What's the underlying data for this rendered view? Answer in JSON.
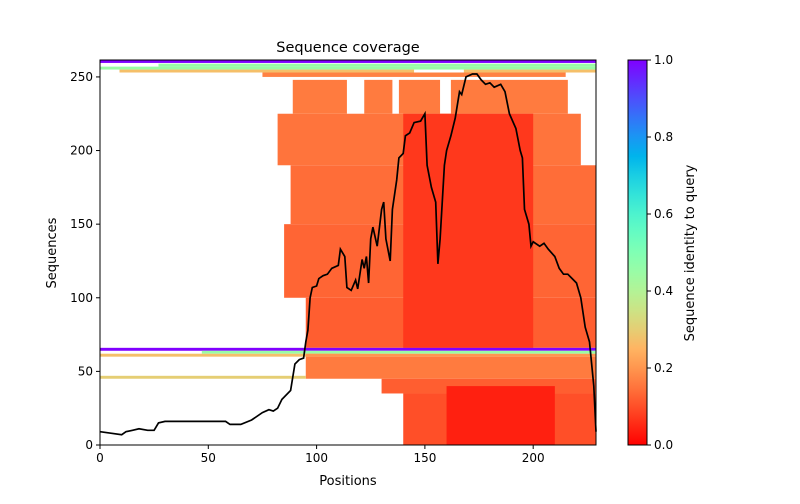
{
  "chart_data": {
    "type": "heatmap",
    "title": "Sequence coverage",
    "xlabel": "Positions",
    "ylabel": "Sequences",
    "xlim": [
      0,
      229
    ],
    "ylim": [
      0,
      261.5
    ],
    "xticks": [
      0,
      50,
      100,
      150,
      200
    ],
    "yticks": [
      0,
      50,
      100,
      150,
      200,
      250
    ],
    "colorbar": {
      "label": "Sequence identity to query",
      "range": [
        0,
        1
      ],
      "ticks": [
        "0.0",
        "0.2",
        "0.4",
        "0.6",
        "0.8",
        "1.0"
      ],
      "colormap": "rainbow_r"
    },
    "coverage_blocks": [
      {
        "rows": [
          259.5,
          261.5
        ],
        "x": [
          0,
          229
        ],
        "identity": 1.0
      },
      {
        "rows": [
          257,
          259
        ],
        "x": [
          27,
          229
        ],
        "identity": 0.45
      },
      {
        "rows": [
          255,
          257
        ],
        "x": [
          0,
          229
        ],
        "identity": 0.45
      },
      {
        "rows": [
          253,
          255
        ],
        "x": [
          9,
          145
        ],
        "identity": 0.27
      },
      {
        "rows": [
          253,
          255
        ],
        "x": [
          168,
          229
        ],
        "identity": 0.27
      },
      {
        "rows": [
          250,
          253
        ],
        "x": [
          75,
          215
        ],
        "identity": 0.17
      },
      {
        "rows": [
          225,
          248
        ],
        "x": [
          89,
          114
        ],
        "identity": 0.16
      },
      {
        "rows": [
          225,
          248
        ],
        "x": [
          122,
          135
        ],
        "identity": 0.16
      },
      {
        "rows": [
          225,
          248
        ],
        "x": [
          138,
          157
        ],
        "identity": 0.16
      },
      {
        "rows": [
          225,
          248
        ],
        "x": [
          162,
          216
        ],
        "identity": 0.16
      },
      {
        "rows": [
          190,
          225
        ],
        "x": [
          82,
          222
        ],
        "identity": 0.15
      },
      {
        "rows": [
          150,
          190
        ],
        "x": [
          88,
          229
        ],
        "identity": 0.14
      },
      {
        "rows": [
          100,
          150
        ],
        "x": [
          85,
          229
        ],
        "identity": 0.13
      },
      {
        "rows": [
          66,
          100
        ],
        "x": [
          95,
          229
        ],
        "identity": 0.12
      },
      {
        "rows": [
          66,
          225
        ],
        "x": [
          140,
          200
        ],
        "identity": 0.07
      },
      {
        "rows": [
          64,
          66
        ],
        "x": [
          0,
          229
        ],
        "identity": 1.0
      },
      {
        "rows": [
          62,
          64
        ],
        "x": [
          47,
          229
        ],
        "identity": 0.45
      },
      {
        "rows": [
          60,
          62
        ],
        "x": [
          0,
          120
        ],
        "identity": 0.27
      },
      {
        "rows": [
          60,
          62
        ],
        "x": [
          95,
          229
        ],
        "identity": 0.2
      },
      {
        "rows": [
          45,
          60
        ],
        "x": [
          95,
          229
        ],
        "identity": 0.16
      },
      {
        "rows": [
          45,
          47
        ],
        "x": [
          0,
          95
        ],
        "identity": 0.3
      },
      {
        "rows": [
          35,
          45
        ],
        "x": [
          130,
          229
        ],
        "identity": 0.12
      },
      {
        "rows": [
          0,
          35
        ],
        "x": [
          140,
          229
        ],
        "identity": 0.1
      },
      {
        "rows": [
          0,
          40
        ],
        "x": [
          160,
          210
        ],
        "identity": 0.04
      }
    ],
    "coverage_line": {
      "x": [
        0,
        5,
        10,
        12,
        15,
        18,
        22,
        25,
        27,
        30,
        40,
        50,
        58,
        60,
        65,
        70,
        75,
        78,
        80,
        82,
        84,
        88,
        90,
        92,
        94,
        95,
        96,
        97,
        98,
        100,
        101,
        103,
        105,
        107,
        110,
        111,
        113,
        114,
        116,
        118,
        119,
        121,
        122,
        123,
        124,
        125,
        126,
        128,
        130,
        131,
        132,
        134,
        135,
        137,
        138,
        140,
        141,
        143,
        145,
        148,
        150,
        151,
        153,
        155,
        156,
        157,
        159,
        160,
        162,
        164,
        166,
        167,
        169,
        172,
        174,
        176,
        178,
        180,
        182,
        185,
        187,
        189,
        192,
        194,
        195,
        196,
        197,
        198,
        199,
        200,
        203,
        205,
        207,
        210,
        212,
        214,
        216,
        218,
        220,
        222,
        224,
        226,
        228,
        229
      ],
      "y": [
        9,
        8,
        7,
        9,
        10,
        11,
        10,
        10,
        15,
        16,
        16,
        16,
        16,
        14,
        14,
        17,
        22,
        24,
        23,
        25,
        31,
        37,
        55,
        58,
        59,
        70,
        78,
        100,
        107,
        108,
        113,
        115,
        116,
        120,
        122,
        133,
        128,
        107,
        105,
        112,
        106,
        126,
        120,
        128,
        110,
        140,
        148,
        135,
        160,
        165,
        140,
        125,
        160,
        180,
        195,
        198,
        210,
        212,
        219,
        220,
        225,
        190,
        175,
        165,
        123,
        140,
        190,
        200,
        210,
        222,
        240,
        238,
        250,
        252,
        252,
        248,
        245,
        246,
        243,
        245,
        240,
        225,
        215,
        200,
        195,
        160,
        155,
        150,
        135,
        138,
        135,
        137,
        133,
        128,
        120,
        116,
        116,
        113,
        110,
        100,
        80,
        70,
        40,
        9
      ]
    }
  }
}
